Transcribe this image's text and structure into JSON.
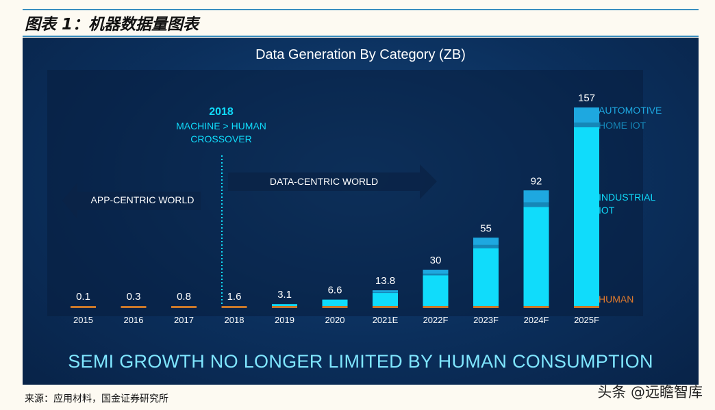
{
  "figure_title": "图表 1：机器数据量图表",
  "source": "来源：应用材料，国金证券研究所",
  "watermark": "头条 @远瞻智库",
  "chart_data": {
    "type": "bar",
    "stacked": true,
    "title": "Data Generation By Category (ZB)",
    "categories": [
      "2015",
      "2016",
      "2017",
      "2018",
      "2019",
      "2020",
      "2021E",
      "2022F",
      "2023F",
      "2024F",
      "2025F"
    ],
    "values": [
      0.1,
      0.3,
      0.8,
      1.6,
      3.1,
      6.6,
      13.8,
      30,
      55,
      92,
      157
    ],
    "data_labels": [
      "0.1",
      "0.3",
      "0.8",
      "1.6",
      "3.1",
      "6.6",
      "13.8",
      "30",
      "55",
      "92",
      "157"
    ],
    "legend": [
      "AUTOMOTIVE",
      "HOME IOT",
      "INDUSTRIAL IOT",
      "HUMAN"
    ],
    "legend_placement": "right",
    "colors": {
      "automotive": "#1ea8e0",
      "home_iot": "#1587b8",
      "industrial_iot": "#10dcfb",
      "human": "#c8782a"
    },
    "annotations": {
      "crossover_year": "2018",
      "crossover_text_1": "MACHINE > HUMAN",
      "crossover_text_2": "CROSSOVER",
      "app_centric": "APP-CENTRIC WORLD",
      "data_centric": "DATA-CENTRIC WORLD"
    },
    "footer_banner": "SEMI GROWTH NO LONGER LIMITED BY HUMAN CONSUMPTION",
    "grid": false
  }
}
